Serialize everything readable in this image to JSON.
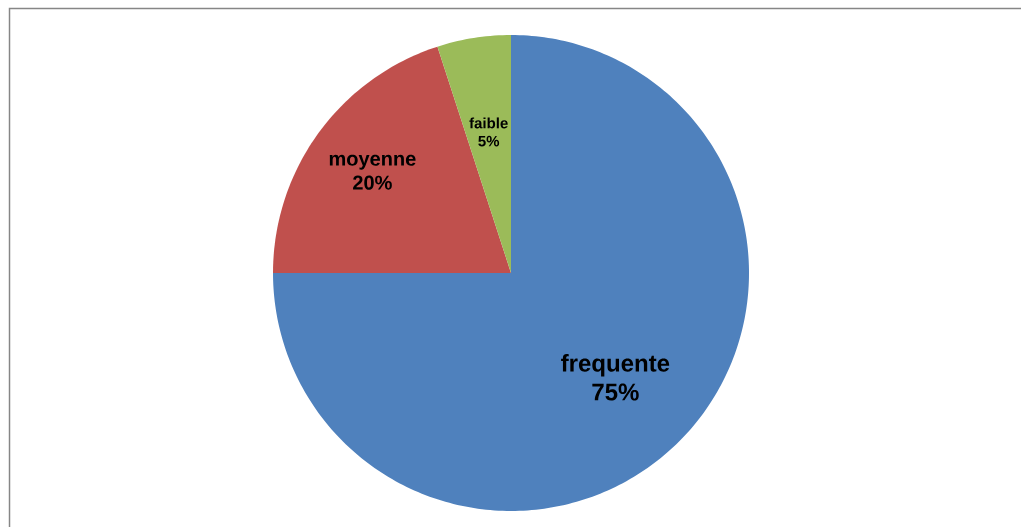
{
  "chart_data": {
    "type": "pie",
    "categories": [
      "frequente",
      "moyenne",
      "faible"
    ],
    "values": [
      75,
      20,
      5
    ],
    "colors": [
      "#4f81bd",
      "#c0504d",
      "#9bbb59"
    ],
    "value_labels": [
      "75%",
      "20%",
      "5%"
    ]
  }
}
